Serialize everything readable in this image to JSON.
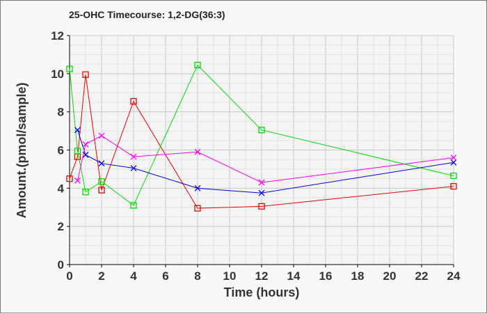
{
  "chart_data": {
    "type": "line",
    "title": "25-OHC Timecourse: 1,2-DG(36:3)",
    "xlabel": "Time (hours)",
    "ylabel": "Amount.(pmol/sample)",
    "xlim": [
      0,
      24
    ],
    "ylim": [
      0,
      12
    ],
    "xticks": [
      "0",
      "2",
      "4",
      "6",
      "8",
      "10",
      "12",
      "14",
      "16",
      "18",
      "20",
      "22",
      "24"
    ],
    "yticks": [
      "0",
      "2",
      "4",
      "6",
      "8",
      "10",
      "12"
    ],
    "grid": true,
    "series": [
      {
        "name": "red",
        "color": "#ee0000",
        "marker": "square",
        "x": [
          0,
          0.5,
          1,
          2,
          4,
          8,
          12,
          24
        ],
        "y": [
          4.5,
          5.65,
          9.95,
          3.9,
          8.55,
          2.95,
          3.05,
          4.1
        ]
      },
      {
        "name": "green",
        "color": "#00dd00",
        "marker": "square",
        "x": [
          0,
          0.5,
          1,
          2,
          4,
          8,
          12,
          24
        ],
        "y": [
          10.25,
          5.95,
          3.8,
          4.35,
          3.1,
          10.45,
          7.05,
          4.65
        ]
      },
      {
        "name": "blue",
        "color": "#0000dd",
        "marker": "x",
        "x": [
          0.5,
          1,
          2,
          4,
          8,
          12,
          24
        ],
        "y": [
          7.05,
          5.75,
          5.3,
          5.05,
          4.0,
          3.75,
          5.35
        ]
      },
      {
        "name": "magenta",
        "color": "#ff00ff",
        "marker": "x",
        "x": [
          0.5,
          1,
          2,
          4,
          8,
          12,
          24
        ],
        "y": [
          4.4,
          6.3,
          6.75,
          5.65,
          5.9,
          4.3,
          5.6
        ]
      }
    ]
  }
}
